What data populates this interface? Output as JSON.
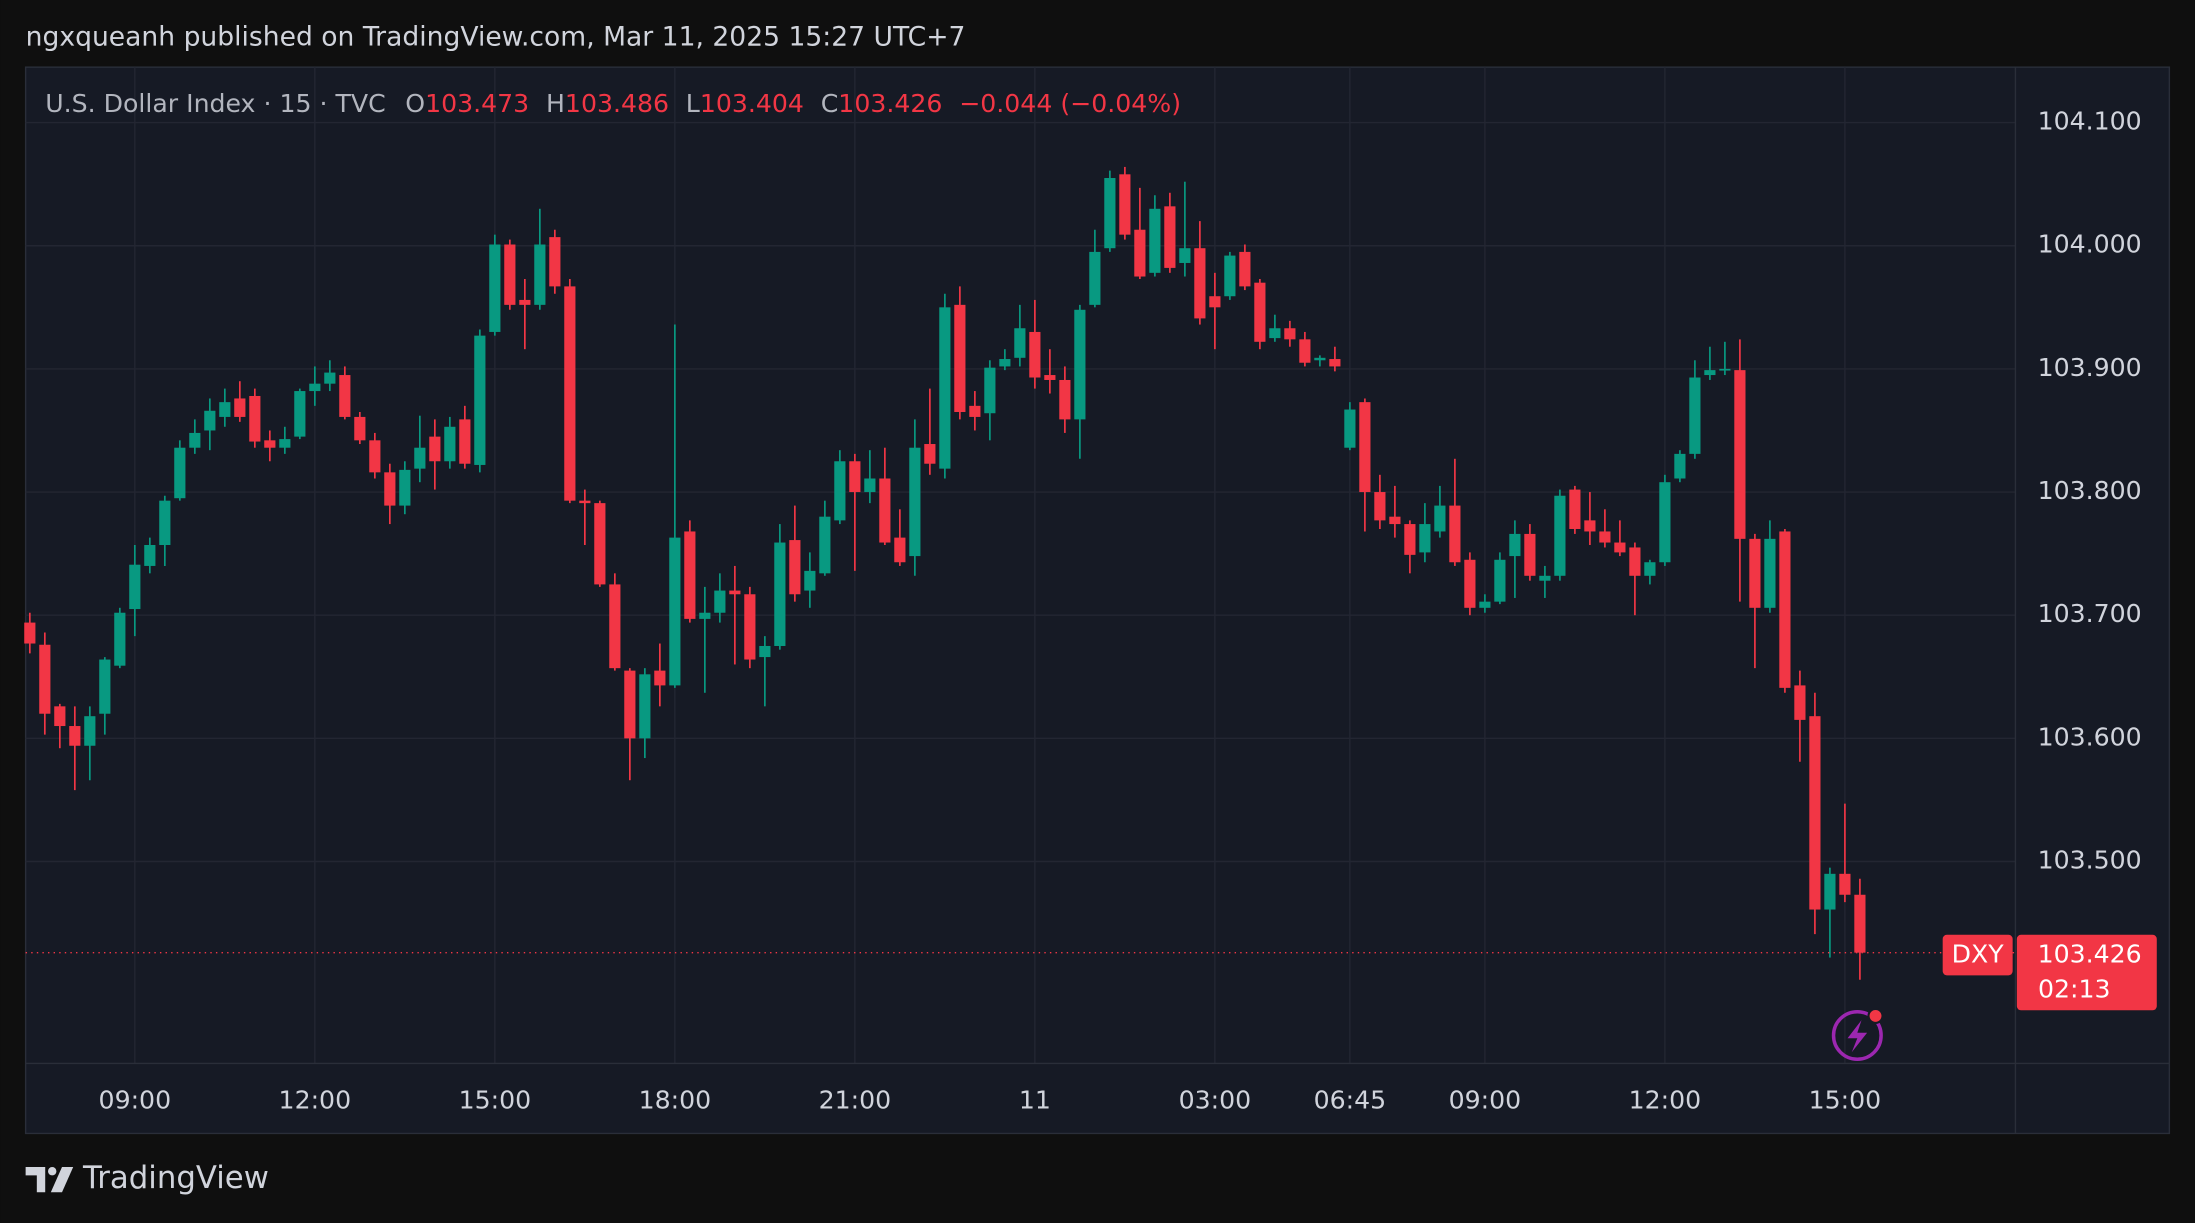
{
  "header": {
    "published": "ngxqueanh published on TradingView.com, Mar 11, 2025 15:27 UTC+7",
    "brand": "TradingView"
  },
  "chart_data": {
    "type": "candlestick",
    "legend": {
      "symbol": "U.S. Dollar Index · 15 · TVC",
      "open_label": "O",
      "high_label": "H",
      "low_label": "L",
      "close_label": "C",
      "change": "−0.044 (−0.04%)"
    },
    "price_tag": {
      "symbol": "DXY",
      "countdown": "02:13"
    },
    "up_color": "#089981",
    "down_color": "#f23645",
    "grid": true,
    "ylim": [
      103.336,
      104.145
    ],
    "yticks": [
      {
        "value": 103.5,
        "label": "103.500"
      },
      {
        "value": 103.6,
        "label": "103.600"
      },
      {
        "value": 103.7,
        "label": "103.700"
      },
      {
        "value": 103.8,
        "label": "103.800"
      },
      {
        "value": 103.9,
        "label": "103.900"
      },
      {
        "value": 104.0,
        "label": "104.000"
      },
      {
        "value": 104.1,
        "label": "104.100"
      }
    ],
    "categories": [
      null,
      null,
      null,
      null,
      null,
      null,
      null,
      "09:00",
      null,
      null,
      null,
      null,
      null,
      null,
      null,
      null,
      null,
      null,
      null,
      "12:00",
      null,
      null,
      null,
      null,
      null,
      null,
      null,
      null,
      null,
      null,
      null,
      "15:00",
      null,
      null,
      null,
      null,
      null,
      null,
      null,
      null,
      null,
      null,
      null,
      "18:00",
      null,
      null,
      null,
      null,
      null,
      null,
      null,
      null,
      null,
      null,
      null,
      "21:00",
      null,
      null,
      null,
      null,
      null,
      null,
      null,
      null,
      null,
      null,
      null,
      "11",
      null,
      null,
      null,
      null,
      null,
      null,
      null,
      null,
      null,
      null,
      null,
      "03:00",
      null,
      null,
      null,
      null,
      null,
      null,
      null,
      null,
      "06:45",
      null,
      null,
      null,
      null,
      null,
      null,
      null,
      null,
      "09:00",
      null,
      null,
      null,
      null,
      null,
      null,
      null,
      null,
      null,
      null,
      null,
      "12:00",
      null,
      null,
      null,
      null,
      null,
      null,
      null,
      null,
      null,
      null,
      null,
      "15:00",
      null
    ],
    "open": [
      103.694,
      103.676,
      103.626,
      103.61,
      103.594,
      103.62,
      103.659,
      103.705,
      103.74,
      103.757,
      103.795,
      103.836,
      103.85,
      103.861,
      103.876,
      103.878,
      103.842,
      103.836,
      103.845,
      103.882,
      103.888,
      103.895,
      103.861,
      103.842,
      103.816,
      103.789,
      103.819,
      103.845,
      103.825,
      103.859,
      103.822,
      103.93,
      104.001,
      103.956,
      103.952,
      104.007,
      103.967,
      103.793,
      103.791,
      103.725,
      103.655,
      103.6,
      103.655,
      103.643,
      103.768,
      103.697,
      103.702,
      103.72,
      103.717,
      103.666,
      103.675,
      103.761,
      103.72,
      103.734,
      103.777,
      103.825,
      103.8,
      103.811,
      103.763,
      103.748,
      103.839,
      103.819,
      103.952,
      103.87,
      103.864,
      103.902,
      103.909,
      103.93,
      103.895,
      103.891,
      103.859,
      103.952,
      103.998,
      104.058,
      104.013,
      103.978,
      104.032,
      103.986,
      103.998,
      103.959,
      103.959,
      103.995,
      103.97,
      103.925,
      103.933,
      103.924,
      103.907,
      103.908,
      103.836,
      103.873,
      103.8,
      103.78,
      103.774,
      103.751,
      103.768,
      103.789,
      103.745,
      103.706,
      103.711,
      103.748,
      103.766,
      103.728,
      103.732,
      103.802,
      103.777,
      103.768,
      103.759,
      103.755,
      103.732,
      103.743,
      103.811,
      103.831,
      103.895,
      103.899,
      103.899,
      103.762,
      103.706,
      103.768,
      103.643,
      103.618,
      103.461,
      103.49,
      103.473
    ],
    "high": [
      103.702,
      103.686,
      103.628,
      103.626,
      103.626,
      103.666,
      103.706,
      103.757,
      103.763,
      103.797,
      103.842,
      103.859,
      103.876,
      103.884,
      103.89,
      103.884,
      103.85,
      103.853,
      103.884,
      103.902,
      103.907,
      103.902,
      103.865,
      103.848,
      103.823,
      103.825,
      103.862,
      103.859,
      103.861,
      103.87,
      103.932,
      104.009,
      104.005,
      103.973,
      104.03,
      104.013,
      103.973,
      103.802,
      103.793,
      103.734,
      103.657,
      103.657,
      103.677,
      103.936,
      103.777,
      103.723,
      103.734,
      103.74,
      103.723,
      103.683,
      103.774,
      103.789,
      103.751,
      103.793,
      103.834,
      103.831,
      103.834,
      103.836,
      103.786,
      103.859,
      103.884,
      103.961,
      103.967,
      103.882,
      103.907,
      103.916,
      103.952,
      103.956,
      103.916,
      103.902,
      103.952,
      104.013,
      104.061,
      104.064,
      104.047,
      104.041,
      104.043,
      104.052,
      104.02,
      103.978,
      103.995,
      104.001,
      103.973,
      103.944,
      103.939,
      103.93,
      103.911,
      103.918,
      103.873,
      103.876,
      103.814,
      103.805,
      103.777,
      103.791,
      103.805,
      103.827,
      103.751,
      103.717,
      103.751,
      103.777,
      103.774,
      103.74,
      103.802,
      103.805,
      103.8,
      103.786,
      103.777,
      103.759,
      103.745,
      103.814,
      103.834,
      103.907,
      103.918,
      103.922,
      103.924,
      103.766,
      103.777,
      103.77,
      103.655,
      103.637,
      103.495,
      103.547,
      103.486
    ],
    "low": [
      103.669,
      103.603,
      103.592,
      103.558,
      103.566,
      103.603,
      103.657,
      103.683,
      103.734,
      103.74,
      103.793,
      103.831,
      103.834,
      103.853,
      103.857,
      103.836,
      103.825,
      103.831,
      103.843,
      103.87,
      103.882,
      103.859,
      103.839,
      103.811,
      103.774,
      103.782,
      103.808,
      103.802,
      103.819,
      103.819,
      103.816,
      103.927,
      103.948,
      103.916,
      103.948,
      103.961,
      103.791,
      103.757,
      103.723,
      103.655,
      103.566,
      103.584,
      103.626,
      103.641,
      103.694,
      103.637,
      103.694,
      103.66,
      103.657,
      103.626,
      103.672,
      103.711,
      103.706,
      103.732,
      103.774,
      103.736,
      103.791,
      103.757,
      103.74,
      103.732,
      103.814,
      103.811,
      103.859,
      103.85,
      103.842,
      103.899,
      103.902,
      103.884,
      103.88,
      103.848,
      103.827,
      103.95,
      103.995,
      104.005,
      103.973,
      103.975,
      103.978,
      103.975,
      103.936,
      103.916,
      103.956,
      103.964,
      103.916,
      103.922,
      103.918,
      103.902,
      103.902,
      103.898,
      103.834,
      103.768,
      103.77,
      103.763,
      103.734,
      103.743,
      103.763,
      103.74,
      103.7,
      103.702,
      103.709,
      103.714,
      103.728,
      103.714,
      103.728,
      103.766,
      103.757,
      103.755,
      103.748,
      103.7,
      103.725,
      103.74,
      103.808,
      103.827,
      103.891,
      103.895,
      103.711,
      103.657,
      103.702,
      103.637,
      103.581,
      103.441,
      103.422,
      103.467,
      103.404
    ],
    "close": [
      103.677,
      103.62,
      103.61,
      103.594,
      103.618,
      103.664,
      103.702,
      103.741,
      103.757,
      103.793,
      103.836,
      103.848,
      103.866,
      103.873,
      103.861,
      103.841,
      103.836,
      103.843,
      103.882,
      103.888,
      103.897,
      103.861,
      103.842,
      103.816,
      103.789,
      103.818,
      103.836,
      103.825,
      103.853,
      103.823,
      103.927,
      104.001,
      103.952,
      103.952,
      104.001,
      103.967,
      103.793,
      103.791,
      103.725,
      103.657,
      103.6,
      103.652,
      103.643,
      103.763,
      103.697,
      103.702,
      103.72,
      103.717,
      103.664,
      103.675,
      103.759,
      103.717,
      103.736,
      103.78,
      103.825,
      103.8,
      103.811,
      103.759,
      103.743,
      103.836,
      103.823,
      103.95,
      103.865,
      103.861,
      103.901,
      103.908,
      103.933,
      103.893,
      103.891,
      103.859,
      103.948,
      103.995,
      104.055,
      104.009,
      103.975,
      104.03,
      103.982,
      103.998,
      103.941,
      103.95,
      103.992,
      103.967,
      103.922,
      103.933,
      103.924,
      103.905,
      103.909,
      103.902,
      103.867,
      103.8,
      103.777,
      103.774,
      103.749,
      103.774,
      103.789,
      103.743,
      103.706,
      103.711,
      103.745,
      103.766,
      103.732,
      103.732,
      103.797,
      103.77,
      103.768,
      103.759,
      103.751,
      103.732,
      103.743,
      103.808,
      103.831,
      103.893,
      103.899,
      103.9,
      103.762,
      103.706,
      103.762,
      103.641,
      103.615,
      103.461,
      103.49,
      103.473,
      103.426
    ]
  }
}
